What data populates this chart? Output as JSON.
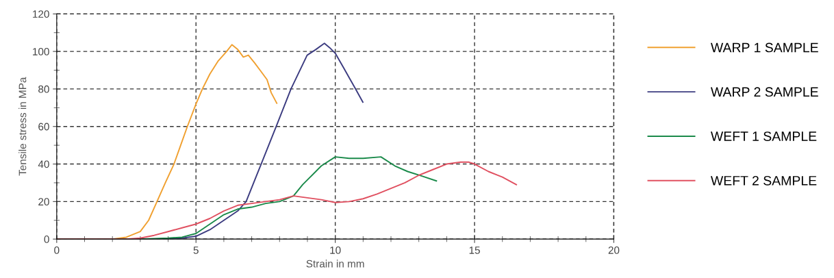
{
  "chart_data": {
    "type": "line",
    "xlabel": "Strain in mm",
    "ylabel": "Tensile stress in MPa",
    "xlim": [
      0,
      20
    ],
    "xticks": [
      0,
      5,
      10,
      15,
      20
    ],
    "ylim": [
      0,
      120
    ],
    "yticks": [
      0,
      20,
      40,
      60,
      80,
      100,
      120
    ],
    "grid": true,
    "legend": "right",
    "line_style": "solid",
    "series": [
      {
        "name": "WARP 1 SAMPLE",
        "color": "#f0a030",
        "x": [
          0,
          1,
          2,
          2.5,
          3,
          3.3,
          3.6,
          3.9,
          4.21,
          4.45,
          4.69,
          5,
          5.23,
          5.5,
          5.8,
          6.1,
          6.29,
          6.5,
          6.7,
          6.88,
          7.1,
          7.3,
          7.55,
          7.7,
          7.9
        ],
        "values": [
          0,
          0,
          0,
          1,
          4,
          10,
          20,
          30,
          40,
          50,
          60,
          72,
          80,
          88,
          95,
          100,
          103.6,
          101,
          97,
          98,
          94,
          90,
          85,
          78,
          72.4
        ]
      },
      {
        "name": "WARP 2 SAMPLE",
        "color": "#3c3c80",
        "x": [
          0,
          2,
          4,
          4.5,
          5,
          5.5,
          6,
          6.5,
          6.8,
          7.34,
          7.88,
          8.41,
          8.99,
          9.3,
          9.61,
          9.8,
          10,
          10.31,
          10.73,
          10.99
        ],
        "values": [
          0,
          0,
          0,
          0.5,
          1.5,
          5,
          10,
          15,
          20,
          40,
          60,
          80,
          98,
          101,
          104.3,
          102,
          99,
          91,
          80,
          73
        ]
      },
      {
        "name": "WEFT 1 SAMPLE",
        "color": "#1a8a4a",
        "x": [
          0,
          3,
          4,
          4.5,
          5,
          5.5,
          6,
          6.5,
          7,
          7.5,
          8,
          8.5,
          8.83,
          9.5,
          10,
          10.5,
          11,
          11.64,
          12.14,
          12.6,
          13.13,
          13.63
        ],
        "values": [
          0,
          0,
          0.5,
          1,
          3,
          8,
          13,
          16,
          17,
          19,
          20,
          23,
          29,
          39,
          43.8,
          43,
          43,
          43.8,
          39,
          36,
          33.5,
          31
        ]
      },
      {
        "name": "WEFT 2 SAMPLE",
        "color": "#e05060",
        "x": [
          0,
          2.5,
          3,
          3.5,
          4,
          4.5,
          5,
          5.5,
          6,
          6.5,
          7,
          7.5,
          8,
          8.5,
          9,
          9.5,
          10,
          10.5,
          11,
          11.5,
          12,
          12.5,
          13,
          13.5,
          14,
          14.5,
          14.8,
          15,
          15.5,
          16,
          16.5
        ],
        "values": [
          0,
          0,
          0.5,
          2,
          4,
          6,
          8,
          11,
          15,
          18,
          19,
          20,
          21,
          23,
          22,
          21,
          19.5,
          20,
          21.5,
          24,
          27,
          30,
          34,
          37,
          40,
          41,
          41,
          40,
          36,
          33,
          29
        ]
      }
    ]
  }
}
